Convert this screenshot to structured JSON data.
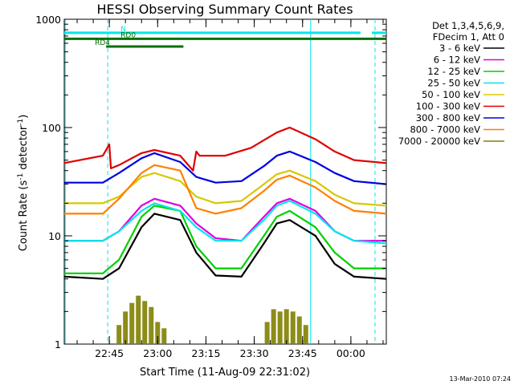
{
  "chart_data": {
    "type": "line",
    "title": "HESSI Observing Summary Count Rates",
    "xlabel": "Start Time (11-Aug-09 22:31:02)",
    "ylabel": "Count Rate (s-1 detector-1)",
    "ylabel_parts": {
      "base": "Count Rate (s",
      "sup1": "-1",
      "mid": " detector",
      "sup2": "-1",
      "end": ")"
    },
    "yscale": "log",
    "ylim": [
      1,
      1000
    ],
    "y_ticks": [
      1,
      10,
      100,
      1000
    ],
    "y_tick_labels": [
      "1",
      "10",
      "100",
      "1000"
    ],
    "xlim_minutes": [
      0,
      100
    ],
    "x_ticks": [
      14,
      29,
      44,
      59,
      74,
      89
    ],
    "x_tick_labels": [
      "22:45",
      "23:00",
      "23:15",
      "23:30",
      "23:45",
      "00:00"
    ],
    "legend_header": [
      "Det 1,3,4,5,6,9,",
      "FDecim 1, Att 0"
    ],
    "legend_position": "right",
    "series": [
      {
        "name": "3 - 6 keV",
        "color": "#000000",
        "x": [
          0,
          12,
          17,
          24,
          28,
          36,
          41,
          47,
          55,
          62,
          66,
          70,
          78,
          84,
          90,
          100
        ],
        "y": [
          4.2,
          4.0,
          5.0,
          12,
          16,
          14,
          7.0,
          4.3,
          4.2,
          8.5,
          13,
          14,
          10,
          5.5,
          4.2,
          4.0
        ]
      },
      {
        "name": "6 - 12 keV",
        "color": "#e000e0",
        "x": [
          0,
          12,
          17,
          24,
          28,
          36,
          41,
          47,
          55,
          62,
          66,
          70,
          78,
          84,
          90,
          100
        ],
        "y": [
          9.0,
          9.0,
          11,
          19,
          22,
          19,
          13,
          9.5,
          9.0,
          15,
          20,
          22,
          17,
          11,
          9.0,
          9.0
        ]
      },
      {
        "name": "12 - 25 keV",
        "color": "#00d000",
        "x": [
          0,
          12,
          17,
          24,
          28,
          36,
          41,
          47,
          55,
          62,
          66,
          70,
          78,
          84,
          90,
          100
        ],
        "y": [
          4.5,
          4.5,
          6.0,
          15,
          19,
          17,
          8.0,
          5.0,
          5.0,
          10,
          15,
          17,
          12,
          7.0,
          5.0,
          5.0
        ]
      },
      {
        "name": "25 - 50 keV",
        "color": "#00e8e8",
        "x": [
          0,
          12,
          17,
          24,
          28,
          36,
          41,
          47,
          55,
          62,
          66,
          70,
          78,
          84,
          90,
          100
        ],
        "y": [
          9.0,
          9.0,
          11,
          17,
          20,
          17,
          12,
          9.0,
          9.0,
          14,
          19,
          21,
          16,
          11,
          9.0,
          8.5
        ]
      },
      {
        "name": "50 - 100 keV",
        "color": "#d8c800",
        "x": [
          0,
          12,
          17,
          24,
          28,
          36,
          41,
          47,
          55,
          62,
          66,
          70,
          78,
          84,
          90,
          100
        ],
        "y": [
          20,
          20,
          23,
          35,
          38,
          32,
          23,
          20,
          21,
          30,
          37,
          40,
          32,
          24,
          20,
          19
        ]
      },
      {
        "name": "100 - 300 keV",
        "color": "#e00000",
        "x": [
          0,
          12,
          14,
          14.5,
          17,
          24,
          28,
          36,
          40,
          41,
          42,
          50,
          58,
          66,
          70,
          78,
          84,
          90,
          100
        ],
        "y": [
          47,
          55,
          70,
          42,
          45,
          58,
          62,
          55,
          40,
          60,
          55,
          55,
          65,
          90,
          100,
          78,
          60,
          50,
          47
        ]
      },
      {
        "name": "300 - 800 keV",
        "color": "#0000e0",
        "x": [
          0,
          12,
          17,
          24,
          28,
          36,
          41,
          47,
          55,
          62,
          66,
          70,
          78,
          84,
          90,
          100
        ],
        "y": [
          31,
          31,
          38,
          52,
          58,
          48,
          35,
          31,
          32,
          44,
          55,
          60,
          48,
          38,
          32,
          30
        ]
      },
      {
        "name": "800 - 7000 keV",
        "color": "#ff8000",
        "x": [
          0,
          12,
          17,
          24,
          28,
          36,
          41,
          47,
          55,
          62,
          66,
          70,
          78,
          84,
          90,
          100
        ],
        "y": [
          16,
          16,
          22,
          38,
          45,
          40,
          18,
          16,
          18,
          26,
          33,
          36,
          28,
          21,
          17,
          16
        ]
      },
      {
        "name": "7000 - 20000 keV",
        "color": "#808000",
        "x": [
          17,
          19,
          21,
          23,
          25,
          27,
          29,
          31,
          63,
          65,
          67,
          69,
          71,
          73,
          75
        ],
        "y": [
          1.5,
          2.0,
          2.4,
          2.8,
          2.5,
          2.2,
          1.6,
          1.4,
          1.6,
          2.1,
          2.0,
          2.1,
          2.0,
          1.8,
          1.5
        ]
      }
    ],
    "flags": [
      {
        "name": "N",
        "color": "#00e8e8",
        "y": 750,
        "segments": [
          [
            0,
            92
          ],
          [
            95.5,
            100
          ]
        ]
      },
      {
        "name": "RD0",
        "color": "#007000",
        "y": 660,
        "segments": [
          [
            0,
            100
          ]
        ]
      },
      {
        "name": "RD4",
        "color": "#007000",
        "y": 560,
        "segments": [
          [
            13,
            37
          ]
        ]
      }
    ],
    "flag_label_pos": {
      "N": 17.5,
      "RD0": 17.5,
      "RD4": 9.5
    },
    "vertical_markers": [
      {
        "x": 13.5,
        "style": "dashed",
        "color": "#00e8e8"
      },
      {
        "x": 76.5,
        "style": "solid",
        "color": "#00e8e8"
      },
      {
        "x": 96.5,
        "style": "dashed",
        "color": "#00e8e8"
      },
      {
        "x": 0.3,
        "style": "solid",
        "color": "#00e8e8"
      }
    ],
    "timestamp": "13-Mar-2010 07:24"
  }
}
